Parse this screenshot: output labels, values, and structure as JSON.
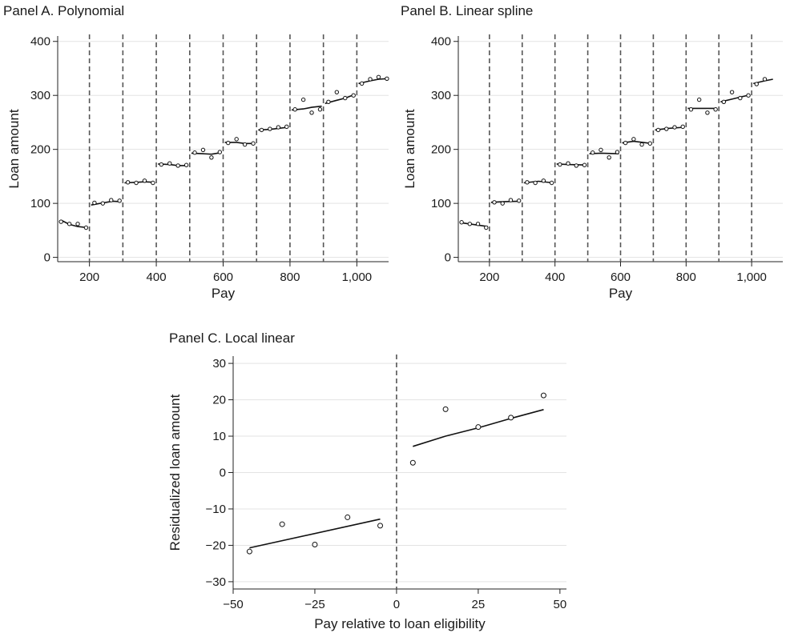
{
  "chart_data": [
    {
      "type": "scatter",
      "title": "Panel A. Polynomial",
      "xlabel": "Pay",
      "ylabel": "Loan amount",
      "xlim": [
        105,
        1095
      ],
      "ylim": [
        -8,
        410
      ],
      "xticks": [
        200,
        400,
        600,
        800,
        1000
      ],
      "xtick_labels": [
        "200",
        "400",
        "600",
        "800",
        "1,000"
      ],
      "yticks": [
        0,
        100,
        200,
        300,
        400
      ],
      "ytick_labels": [
        "0",
        "100",
        "200",
        "300",
        "400"
      ],
      "grid": "horizontal",
      "cutoffs": [
        200,
        300,
        400,
        500,
        600,
        700,
        800,
        900,
        1000
      ],
      "series": [
        {
          "kind": "points",
          "x": [
            115,
            140,
            165,
            190,
            215,
            240,
            265,
            290,
            315,
            340,
            365,
            390,
            415,
            440,
            465,
            490,
            515,
            540,
            565,
            590,
            615,
            640,
            665,
            690,
            715,
            740,
            765,
            790,
            815,
            840,
            865,
            890,
            915,
            940,
            965,
            990,
            1015,
            1040,
            1065,
            1090
          ],
          "y": [
            66,
            62,
            62,
            55,
            101,
            100,
            106,
            105,
            139,
            138,
            142,
            138,
            172,
            174,
            170,
            171,
            194,
            199,
            185,
            195,
            212,
            219,
            209,
            211,
            236,
            238,
            241,
            242,
            274,
            292,
            268,
            274,
            288,
            306,
            295,
            300,
            322,
            330,
            334,
            331
          ]
        },
        {
          "kind": "fit",
          "segments": [
            {
              "x": [
                115,
                140,
                165,
                195
              ],
              "y": [
                69,
                61,
                57,
                55
              ]
            },
            {
              "x": [
                205,
                240,
                270,
                295
              ],
              "y": [
                97,
                101,
                104,
                103
              ]
            },
            {
              "x": [
                305,
                340,
                365,
                395
              ],
              "y": [
                138,
                139,
                140,
                139
              ]
            },
            {
              "x": [
                405,
                440,
                465,
                495
              ],
              "y": [
                173,
                172,
                170,
                170
              ]
            },
            {
              "x": [
                505,
                540,
                565,
                595
              ],
              "y": [
                193,
                192,
                191,
                194
              ]
            },
            {
              "x": [
                605,
                640,
                665,
                695
              ],
              "y": [
                213,
                213,
                211,
                211
              ]
            },
            {
              "x": [
                705,
                740,
                765,
                795
              ],
              "y": [
                236,
                237,
                239,
                241
              ]
            },
            {
              "x": [
                805,
                840,
                865,
                895
              ],
              "y": [
                273,
                275,
                278,
                280
              ]
            },
            {
              "x": [
                905,
                940,
                965,
                995
              ],
              "y": [
                285,
                291,
                295,
                302
              ]
            },
            {
              "x": [
                1005,
                1040,
                1065,
                1090
              ],
              "y": [
                322,
                327,
                330,
                331
              ]
            }
          ]
        }
      ]
    },
    {
      "type": "scatter",
      "title": "Panel B. Linear spline",
      "xlabel": "Pay",
      "ylabel": "Loan amount",
      "xlim": [
        105,
        1095
      ],
      "ylim": [
        -8,
        410
      ],
      "xticks": [
        200,
        400,
        600,
        800,
        1000
      ],
      "xtick_labels": [
        "200",
        "400",
        "600",
        "800",
        "1,000"
      ],
      "yticks": [
        0,
        100,
        200,
        300,
        400
      ],
      "ytick_labels": [
        "0",
        "100",
        "200",
        "300",
        "400"
      ],
      "grid": "horizontal",
      "cutoffs": [
        200,
        300,
        400,
        500,
        600,
        700,
        800,
        900,
        1000
      ],
      "series": [
        {
          "kind": "points",
          "x": [
            115,
            140,
            165,
            190,
            215,
            240,
            265,
            290,
            315,
            340,
            365,
            390,
            415,
            440,
            465,
            490,
            515,
            540,
            565,
            590,
            615,
            640,
            665,
            690,
            715,
            740,
            765,
            790,
            815,
            840,
            865,
            890,
            915,
            940,
            965,
            990,
            1015,
            1040
          ],
          "y": [
            65,
            62,
            62,
            55,
            102,
            100,
            106,
            105,
            139,
            138,
            142,
            138,
            172,
            174,
            170,
            171,
            194,
            199,
            185,
            195,
            212,
            219,
            209,
            211,
            236,
            238,
            241,
            242,
            274,
            292,
            268,
            274,
            288,
            306,
            295,
            300,
            321,
            330
          ]
        },
        {
          "kind": "fit",
          "segments": [
            {
              "x": [
                115,
                150,
                195
              ],
              "y": [
                64,
                61,
                57
              ]
            },
            {
              "x": [
                205,
                240,
                295
              ],
              "y": [
                102,
                103,
                104
              ]
            },
            {
              "x": [
                305,
                350,
                395
              ],
              "y": [
                138,
                141,
                138
              ]
            },
            {
              "x": [
                405,
                440,
                495
              ],
              "y": [
                173,
                172,
                171
              ]
            },
            {
              "x": [
                505,
                540,
                595
              ],
              "y": [
                192,
                193,
                192
              ]
            },
            {
              "x": [
                605,
                640,
                695
              ],
              "y": [
                212,
                215,
                211
              ]
            },
            {
              "x": [
                705,
                745,
                795
              ],
              "y": [
                236,
                239,
                241
              ]
            },
            {
              "x": [
                805,
                840,
                895
              ],
              "y": [
                276,
                276,
                276
              ]
            },
            {
              "x": [
                905,
                960,
                995
              ],
              "y": [
                288,
                296,
                301
              ]
            },
            {
              "x": [
                1005,
                1040,
                1065
              ],
              "y": [
                322,
                327,
                330
              ]
            }
          ]
        }
      ]
    },
    {
      "type": "scatter",
      "title": "Panel C. Local linear",
      "xlabel": "Pay relative to loan eligibility",
      "ylabel": "Residualized loan amount",
      "xlim": [
        -50,
        52
      ],
      "ylim": [
        -32,
        32
      ],
      "xticks": [
        -50,
        -25,
        0,
        25,
        50
      ],
      "xtick_labels": [
        "−50",
        "−25",
        "0",
        "25",
        "50"
      ],
      "yticks": [
        -30,
        -20,
        -10,
        0,
        10,
        20,
        30
      ],
      "ytick_labels": [
        "−30",
        "−20",
        "−10",
        "0",
        "10",
        "20",
        "30"
      ],
      "grid": "horizontal",
      "cutoffs": [
        0
      ],
      "series": [
        {
          "kind": "points",
          "x": [
            -45,
            -35,
            -25,
            -15,
            -5,
            5,
            15,
            25,
            35,
            45
          ],
          "y": [
            -21.7,
            -14.2,
            -19.8,
            -12.3,
            -14.6,
            2.7,
            17.4,
            12.5,
            15.1,
            21.2
          ]
        },
        {
          "kind": "fit",
          "segments": [
            {
              "x": [
                -45,
                -5
              ],
              "y": [
                -20.7,
                -12.8
              ]
            },
            {
              "x": [
                5,
                15,
                25,
                35,
                45
              ],
              "y": [
                7.2,
                10.0,
                12.3,
                14.9,
                17.3
              ]
            }
          ]
        }
      ]
    }
  ]
}
